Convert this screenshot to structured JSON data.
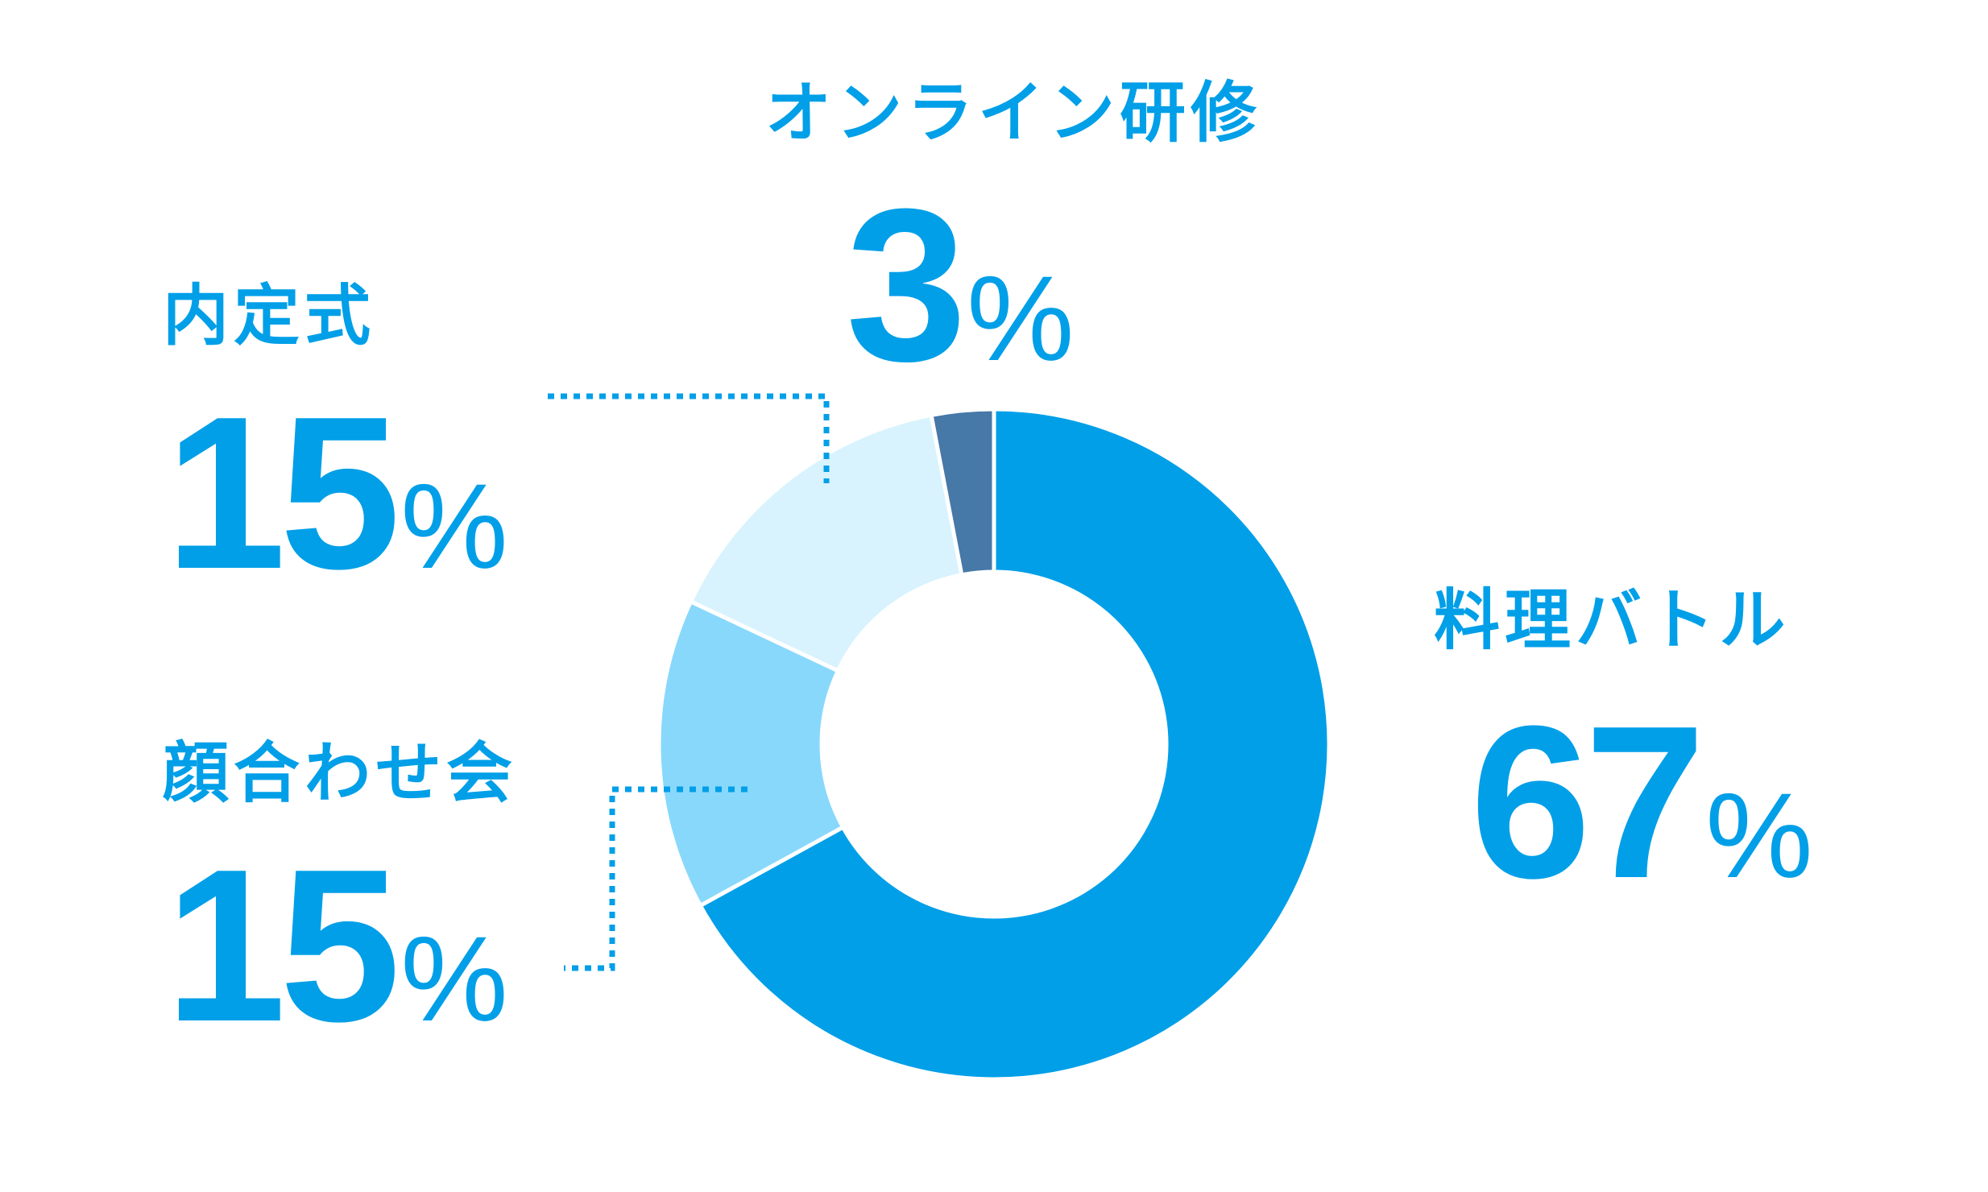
{
  "chart_data": {
    "type": "donut",
    "unit": "%",
    "title": "",
    "slices": [
      {
        "name": "料理バトル",
        "value": 67,
        "color": "#009fe8"
      },
      {
        "name": "顔合わせ会",
        "value": 15,
        "color": "#88d8fc"
      },
      {
        "name": "内定式",
        "value": 15,
        "color": "#d8f3fd"
      },
      {
        "name": "オンライン研修",
        "value": 3,
        "color": "#4678a8"
      }
    ]
  },
  "labels": {
    "cooking_battle": {
      "name": "料理バトル",
      "value": "67",
      "sign": "%"
    },
    "meeting": {
      "name": "顔合わせ会",
      "value": "15",
      "sign": "%"
    },
    "ceremony": {
      "name": "内定式",
      "value": "15",
      "sign": "%"
    },
    "online_training": {
      "name": "オンライン研修",
      "value": "3",
      "sign": "%"
    }
  },
  "colors": {
    "accent_text": "#009fe8",
    "slice_separator": "#ffffff"
  }
}
